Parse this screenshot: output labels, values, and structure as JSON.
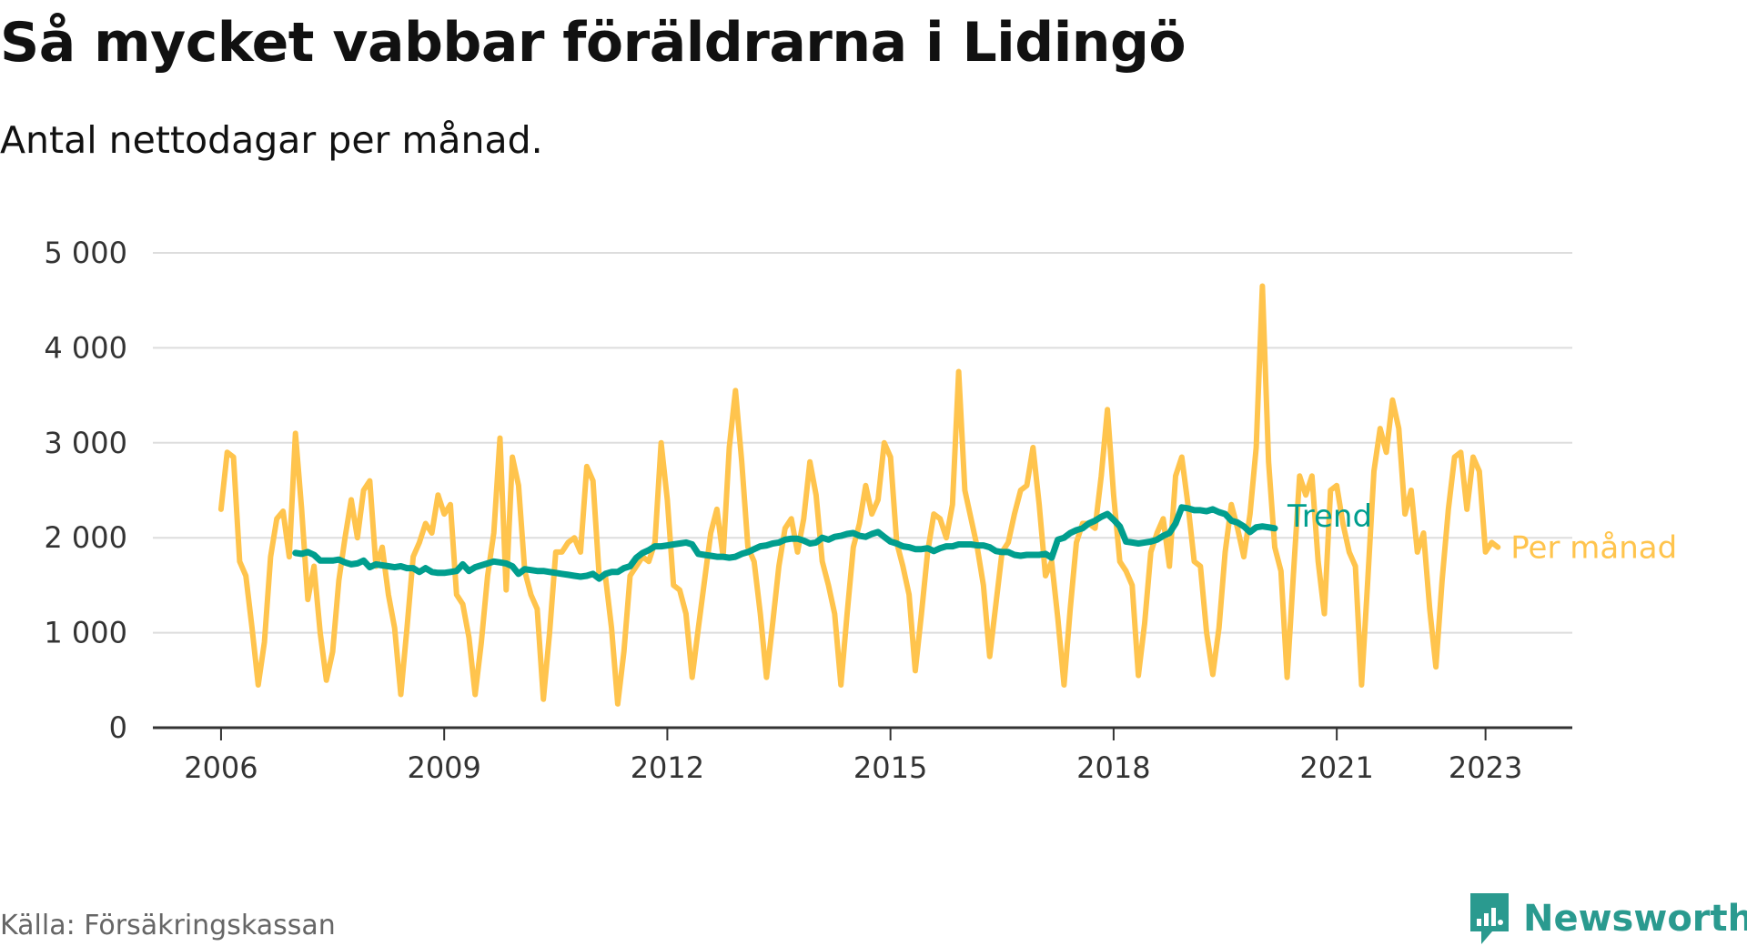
{
  "header": {
    "title": "Så mycket vabbar föräldrarna i Lidingö",
    "subtitle": "Antal nettodagar per månad."
  },
  "footer": {
    "source": "Källa: Försäkringskassan",
    "brand": "Newsworthy",
    "brand_icon": "newsworthy-chart-logo-icon"
  },
  "colors": {
    "monthly": "#ffc44d",
    "trend": "#009e8e",
    "grid": "#dddddd",
    "axis": "#333333",
    "brand": "#2a9a8f"
  },
  "chart_data": {
    "type": "line",
    "title": "Så mycket vabbar föräldrarna i Lidingö",
    "subtitle": "Antal nettodagar per månad.",
    "xlabel": "",
    "ylabel": "",
    "x_start": "2006-01",
    "x_end": "2023-05",
    "xlim": [
      "2005-02",
      "2024-03"
    ],
    "ylim": [
      0,
      5000
    ],
    "y_ticks": [
      0,
      1000,
      2000,
      3000,
      4000,
      5000
    ],
    "y_tick_labels": [
      "0",
      "1 000",
      "2 000",
      "3 000",
      "4 000",
      "5 000"
    ],
    "x_ticks": [
      "2006-01",
      "2009-01",
      "2012-01",
      "2015-01",
      "2018-01",
      "2021-01",
      "2023-01"
    ],
    "x_tick_labels": [
      "2006",
      "2009",
      "2012",
      "2015",
      "2018",
      "2021",
      "2023"
    ],
    "grid": true,
    "legend": "right-end-labels",
    "series": [
      {
        "name": "Per månad",
        "start": "2006-01",
        "values": [
          2300,
          2900,
          2850,
          1750,
          1600,
          1050,
          450,
          900,
          1800,
          2200,
          2280,
          1800,
          3100,
          2300,
          1350,
          1700,
          1000,
          500,
          800,
          1550,
          2000,
          2400,
          2000,
          2500,
          2600,
          1700,
          1900,
          1400,
          1050,
          350,
          1050,
          1800,
          1950,
          2150,
          2050,
          2450,
          2250,
          2350,
          1400,
          1300,
          950,
          350,
          900,
          1600,
          2050,
          3050,
          1450,
          2850,
          2550,
          1650,
          1400,
          1250,
          300,
          1000,
          1850,
          1850,
          1950,
          2000,
          1850,
          2750,
          2600,
          1600,
          1600,
          1050,
          250,
          800,
          1600,
          1700,
          1800,
          1750,
          1950,
          3000,
          2400,
          1500,
          1450,
          1200,
          530,
          1050,
          1550,
          2050,
          2300,
          1800,
          2950,
          3550,
          2800,
          1900,
          1750,
          1200,
          530,
          1100,
          1700,
          2100,
          2200,
          1850,
          2200,
          2800,
          2450,
          1750,
          1500,
          1200,
          450,
          1200,
          1900,
          2150,
          2550,
          2250,
          2400,
          3000,
          2850,
          1950,
          1700,
          1400,
          600,
          1200,
          1850,
          2250,
          2200,
          2000,
          2350,
          3750,
          2500,
          2200,
          1900,
          1500,
          750,
          1300,
          1850,
          1950,
          2250,
          2500,
          2550,
          2950,
          2350,
          1600,
          1750,
          1150,
          450,
          1250,
          1950,
          2150,
          2150,
          2100,
          2650,
          3350,
          2450,
          1750,
          1650,
          1500,
          550,
          1100,
          1850,
          2050,
          2200,
          1700,
          2650,
          2850,
          2350,
          1750,
          1700,
          1000,
          560,
          1050,
          1850,
          2350,
          2100,
          1800,
          2250,
          2950,
          4650,
          2800,
          1900,
          1650,
          530,
          1600,
          2650,
          2450,
          2650,
          1750,
          1200,
          2500,
          2550,
          2150,
          1850,
          1700,
          450,
          1550,
          2700,
          3150,
          2900,
          3450,
          3150,
          2250,
          2500,
          1850,
          2050,
          1250,
          640,
          1550,
          2300,
          2850,
          2900,
          2300,
          2850,
          2700,
          1850,
          1950,
          1900
        ]
      },
      {
        "name": "Trend",
        "start": "2007-01",
        "values": [
          1840,
          1830,
          1850,
          1820,
          1760,
          1760,
          1760,
          1770,
          1740,
          1720,
          1730,
          1760,
          1690,
          1720,
          1710,
          1700,
          1690,
          1700,
          1680,
          1680,
          1640,
          1680,
          1640,
          1630,
          1630,
          1640,
          1650,
          1720,
          1650,
          1690,
          1710,
          1730,
          1750,
          1740,
          1730,
          1700,
          1620,
          1670,
          1660,
          1650,
          1650,
          1640,
          1630,
          1620,
          1610,
          1600,
          1590,
          1600,
          1620,
          1570,
          1620,
          1640,
          1640,
          1680,
          1700,
          1790,
          1840,
          1870,
          1910,
          1910,
          1920,
          1930,
          1940,
          1950,
          1930,
          1830,
          1820,
          1810,
          1800,
          1800,
          1790,
          1800,
          1830,
          1850,
          1880,
          1910,
          1920,
          1940,
          1950,
          1980,
          1990,
          1990,
          1970,
          1940,
          1950,
          2000,
          1980,
          2010,
          2020,
          2040,
          2050,
          2020,
          2010,
          2040,
          2060,
          2010,
          1960,
          1940,
          1910,
          1900,
          1880,
          1880,
          1890,
          1860,
          1890,
          1910,
          1910,
          1930,
          1930,
          1930,
          1920,
          1920,
          1900,
          1860,
          1850,
          1850,
          1820,
          1810,
          1820,
          1820,
          1820,
          1830,
          1790,
          1980,
          2000,
          2050,
          2080,
          2100,
          2150,
          2180,
          2220,
          2250,
          2190,
          2120,
          1960,
          1950,
          1940,
          1950,
          1960,
          1980,
          2020,
          2050,
          2150,
          2320,
          2310,
          2290,
          2290,
          2280,
          2300,
          2270,
          2250,
          2180,
          2160,
          2120,
          2060,
          2110,
          2120,
          2110,
          2100
        ]
      }
    ]
  }
}
